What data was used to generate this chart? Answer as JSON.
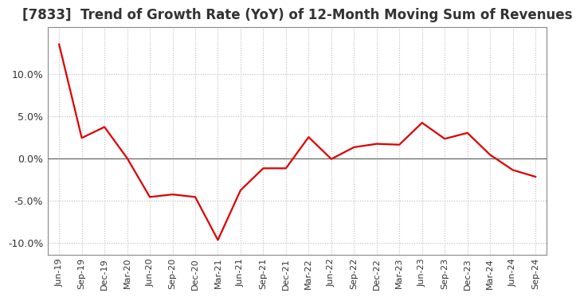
{
  "title": "[7833]  Trend of Growth Rate (YoY) of 12-Month Moving Sum of Revenues",
  "x_labels": [
    "Jun-19",
    "Sep-19",
    "Dec-19",
    "Mar-20",
    "Jun-20",
    "Sep-20",
    "Dec-20",
    "Mar-21",
    "Jun-21",
    "Sep-21",
    "Dec-21",
    "Mar-22",
    "Jun-22",
    "Sep-22",
    "Dec-22",
    "Mar-23",
    "Jun-23",
    "Sep-23",
    "Dec-23",
    "Mar-24",
    "Jun-24",
    "Sep-24"
  ],
  "y_values": [
    0.135,
    0.024,
    0.037,
    0.0,
    -0.046,
    -0.043,
    -0.046,
    -0.097,
    -0.038,
    -0.012,
    -0.012,
    0.025,
    -0.001,
    0.013,
    0.017,
    0.016,
    0.042,
    0.023,
    0.03,
    0.004,
    -0.014,
    -0.022
  ],
  "line_color": "#dd0000",
  "line_width": 1.6,
  "ylim": [
    -0.115,
    0.155
  ],
  "yticks": [
    -0.1,
    -0.05,
    0.0,
    0.05,
    0.1
  ],
  "ytick_labels": [
    "-10.0%",
    "-5.0%",
    "0.0%",
    "5.0%",
    "10.0%"
  ],
  "background_color": "#ffffff",
  "grid_color": "#bbbbbb",
  "title_fontsize": 12,
  "zero_line_color": "#666666"
}
